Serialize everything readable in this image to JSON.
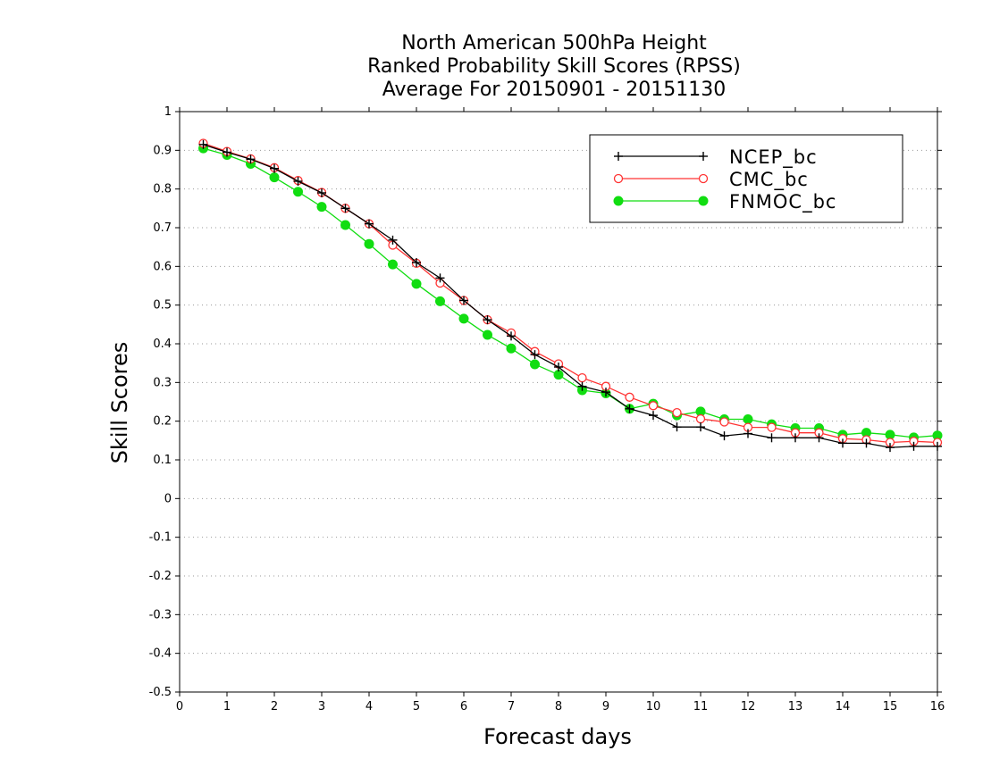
{
  "chart_data": {
    "type": "line",
    "title": [
      "North American 500hPa Height",
      "Ranked Probability Skill Scores (RPSS)",
      "Average For 20150901 - 20151130"
    ],
    "xlabel": "Forecast days",
    "ylabel": "Skill Scores",
    "xlim": [
      0,
      16
    ],
    "ylim": [
      -0.5,
      1
    ],
    "xticks": [
      0,
      1,
      2,
      3,
      4,
      5,
      6,
      7,
      8,
      9,
      10,
      11,
      12,
      13,
      14,
      15,
      16
    ],
    "yticks": [
      -0.5,
      -0.4,
      -0.3,
      -0.2,
      -0.1,
      0,
      0.1,
      0.2,
      0.3,
      0.4,
      0.5,
      0.6,
      0.7,
      0.8,
      0.9,
      1
    ],
    "ytick_labels": [
      "-0.5",
      "-0.4",
      "-0.3",
      "-0.2",
      "-0.1",
      "0",
      "0.1",
      "0.2",
      "0.3",
      "0.4",
      "0.5",
      "0.6",
      "0.7",
      "0.8",
      "0.9",
      "1"
    ],
    "grid": "horizontal dotted",
    "legend_position": "top-right",
    "x": [
      0.5,
      1,
      1.5,
      2,
      2.5,
      3,
      3.5,
      4,
      4.5,
      5,
      5.5,
      6,
      6.5,
      7,
      7.5,
      8,
      8.5,
      9,
      9.5,
      10,
      10.5,
      11,
      11.5,
      12,
      12.5,
      13,
      13.5,
      14,
      14.5,
      15,
      15.5,
      16
    ],
    "series": [
      {
        "name": "NCEP_bc",
        "color": "#000000",
        "marker": "plus",
        "values": [
          0.915,
          0.895,
          0.877,
          0.853,
          0.82,
          0.79,
          0.75,
          0.71,
          0.668,
          0.61,
          0.57,
          0.512,
          0.462,
          0.42,
          0.372,
          0.34,
          0.29,
          0.275,
          0.232,
          0.215,
          0.185,
          0.185,
          0.162,
          0.168,
          0.157,
          0.157,
          0.157,
          0.143,
          0.143,
          0.132,
          0.135,
          0.135
        ]
      },
      {
        "name": "CMC_bc",
        "color": "#ff3333",
        "marker": "open-circle",
        "values": [
          0.918,
          0.897,
          0.878,
          0.855,
          0.822,
          0.791,
          0.75,
          0.71,
          0.655,
          0.608,
          0.557,
          0.512,
          0.462,
          0.428,
          0.38,
          0.348,
          0.312,
          0.29,
          0.262,
          0.24,
          0.222,
          0.206,
          0.198,
          0.184,
          0.184,
          0.17,
          0.17,
          0.155,
          0.152,
          0.145,
          0.148,
          0.145
        ]
      },
      {
        "name": "FNMOC_bc",
        "color": "#11dd11",
        "marker": "filled-circle",
        "values": [
          0.905,
          0.888,
          0.865,
          0.83,
          0.793,
          0.754,
          0.707,
          0.658,
          0.605,
          0.555,
          0.51,
          0.465,
          0.423,
          0.388,
          0.347,
          0.32,
          0.28,
          0.272,
          0.232,
          0.245,
          0.215,
          0.225,
          0.205,
          0.205,
          0.192,
          0.182,
          0.182,
          0.165,
          0.17,
          0.165,
          0.158,
          0.163
        ]
      }
    ]
  }
}
